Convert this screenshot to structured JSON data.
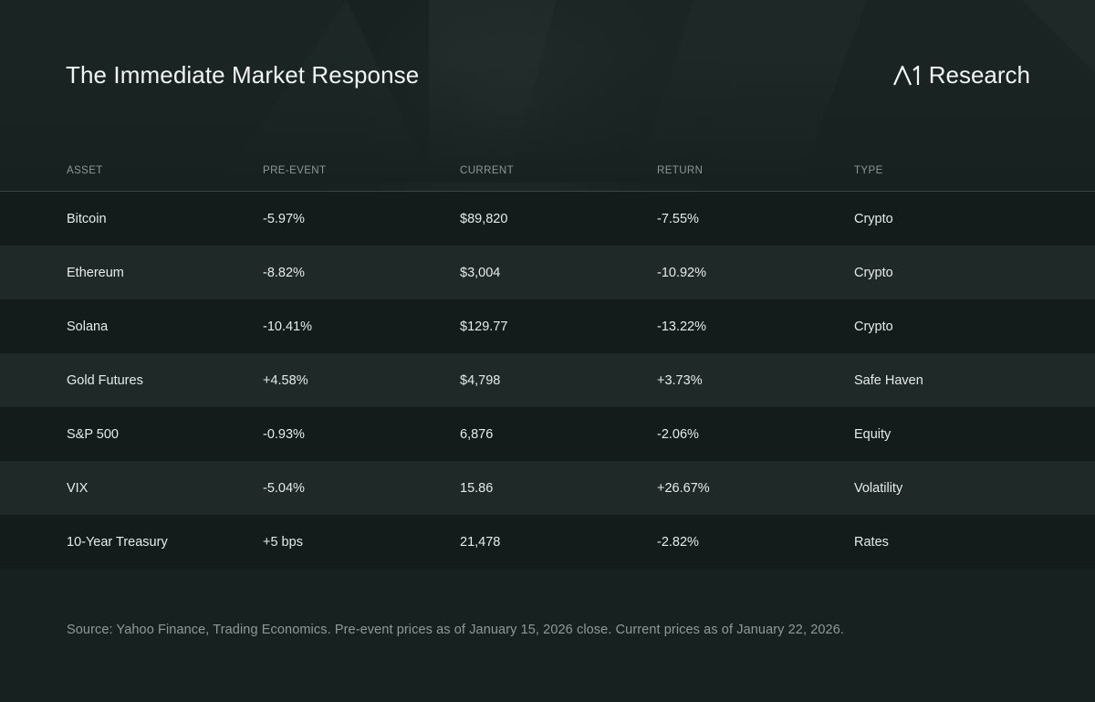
{
  "header": {
    "title": "The Immediate Market Response",
    "brand": "Research",
    "brand_logo": "A1 logo mark"
  },
  "table": {
    "columns": [
      "ASSET",
      "PRE-EVENT",
      "CURRENT",
      "RETURN",
      "TYPE"
    ],
    "rows": [
      [
        "Bitcoin",
        "-5.97%",
        "$89,820",
        "-7.55%",
        "Crypto"
      ],
      [
        "Ethereum",
        "-8.82%",
        "$3,004",
        "-10.92%",
        "Crypto"
      ],
      [
        "Solana",
        "-10.41%",
        "$129.77",
        "-13.22%",
        "Crypto"
      ],
      [
        "Gold Futures",
        "+4.58%",
        "$4,798",
        "+3.73%",
        "Safe Haven"
      ],
      [
        "S&P 500",
        "-0.93%",
        "6,876",
        "-2.06%",
        "Equity"
      ],
      [
        "VIX",
        "-5.04%",
        "15.86",
        "+26.67%",
        "Volatility"
      ],
      [
        "10-Year Treasury",
        "+5 bps",
        "21,478",
        "-2.82%",
        "Rates"
      ]
    ]
  },
  "footnote": "Source: Yahoo Finance, Trading Economics. Pre-event prices as of January 15, 2026 close. Current prices as of January 22, 2026.",
  "colors": {
    "background": "#172120",
    "row_dark": "#141c1b",
    "row_light": "#1f2928",
    "text": "#e6ebe9",
    "muted": "#8d9896"
  }
}
